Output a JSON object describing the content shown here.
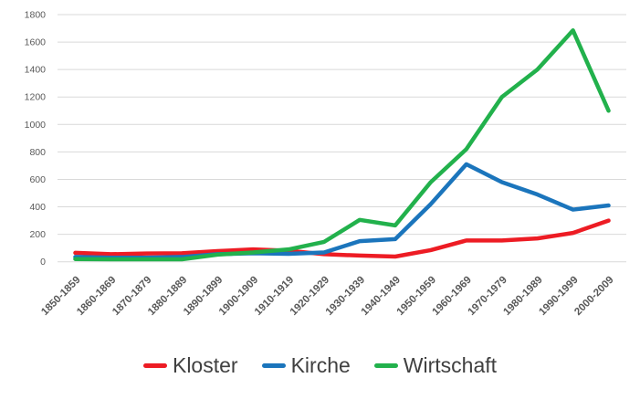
{
  "chart_data": {
    "type": "line",
    "title": "",
    "xlabel": "",
    "ylabel": "",
    "categories": [
      "1850-1859",
      "1860-1869",
      "1870-1879",
      "1880-1889",
      "1890-1899",
      "1900-1909",
      "1910-1919",
      "1920-1929",
      "1930-1939",
      "1940-1949",
      "1950-1959",
      "1960-1969",
      "1970-1979",
      "1980-1989",
      "1990-1999",
      "2000-2009"
    ],
    "series": [
      {
        "name": "Kloster",
        "color": "#ED1C24",
        "values": [
          65,
          55,
          60,
          62,
          78,
          90,
          80,
          55,
          45,
          38,
          85,
          155,
          155,
          170,
          210,
          300
        ]
      },
      {
        "name": "Kirche",
        "color": "#1B75BC",
        "values": [
          35,
          30,
          30,
          35,
          55,
          62,
          58,
          68,
          150,
          165,
          420,
          710,
          580,
          490,
          380,
          410
        ]
      },
      {
        "name": "Wirtschaft",
        "color": "#22B14C",
        "values": [
          20,
          18,
          18,
          18,
          52,
          68,
          90,
          145,
          305,
          265,
          580,
          820,
          1200,
          1400,
          1685,
          1100
        ]
      }
    ],
    "ylim": [
      0,
      1800
    ],
    "ytick_step": 200,
    "grid": "horizontal-only",
    "legend_position": "bottom",
    "colors": {
      "axis_label": "#595959",
      "legend_text": "#404040",
      "gridline": "#D9D9D9",
      "background": "#FFFFFF"
    }
  }
}
